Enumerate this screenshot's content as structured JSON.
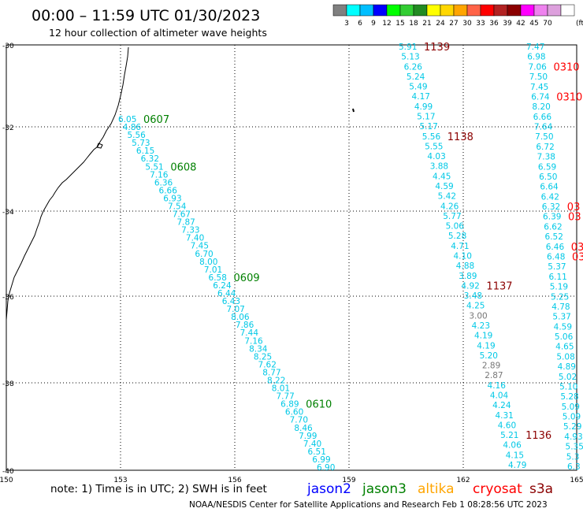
{
  "title": "00:00 – 11:59 UTC 01/30/2023",
  "subtitle": "12 hour collection of altimeter wave heights",
  "legend": {
    "unit": "(ft)",
    "colors": [
      "#808080",
      "#00ffff",
      "#00bfff",
      "#0000ff",
      "#00ff00",
      "#32cd32",
      "#228b22",
      "#ffff00",
      "#ffd700",
      "#ffa500",
      "#ff6347",
      "#ff0000",
      "#b22222",
      "#8b0000",
      "#ff00ff",
      "#ee82ee",
      "#dda0dd",
      "#ffffff"
    ],
    "labels": [
      "3",
      "6",
      "9",
      "12",
      "15",
      "18",
      "21",
      "24",
      "27",
      "30",
      "33",
      "36",
      "39",
      "42",
      "45",
      "70"
    ]
  },
  "axes": {
    "lat_labels": [
      "-30",
      "-32",
      "-34",
      "-36",
      "-38",
      "-40"
    ],
    "lon_labels": [
      "150",
      "153",
      "156",
      "159",
      "162",
      "165"
    ]
  },
  "note": "note:  1) Time is in UTC; 2) SWH is in feet",
  "satellites": [
    {
      "name": "jason2",
      "color": "#0000ff"
    },
    {
      "name": "jason3",
      "color": "#008000"
    },
    {
      "name": "altika",
      "color": "#ffa500"
    },
    {
      "name": "cryosat",
      "color": "#ff0000"
    },
    {
      "name": "s3a",
      "color": "#8b0000"
    }
  ],
  "footer": "NOAA/NESDIS Center for Satellite Applications and Research   Feb  1 08:28:56 UTC 2023",
  "tracks": [
    {
      "id": "jason3-pass",
      "color": "#00bfff",
      "labelColor": "#008000",
      "values": [
        "6.05",
        "4.86",
        "5.56",
        "5.73",
        "6.15",
        "6.32",
        "5.51",
        "7.16",
        "6.36",
        "6.66",
        "6.93",
        "7.54",
        "7.67",
        "7.87",
        "7.33",
        "7.40",
        "7.45",
        "6.70",
        "8.00",
        "7.01",
        "6.58",
        "6.24",
        "6.44",
        "6.43",
        "7.07",
        "8.06",
        "7.86",
        "7.44",
        "7.16",
        "8.34",
        "8.25",
        "7.62",
        "8.77",
        "8.22",
        "8.01",
        "7.77",
        "6.89",
        "6.60",
        "7.70",
        "8.46",
        "7.99",
        "7.40",
        "6.51",
        "6.99",
        "6.90"
      ],
      "times": [
        {
          "idx": 0,
          "text": "0607"
        },
        {
          "idx": 6,
          "text": "0608"
        },
        {
          "idx": 20,
          "text": "0609"
        },
        {
          "idx": 36,
          "text": "0610"
        }
      ]
    },
    {
      "id": "s3a-pass",
      "color": "#00bfff",
      "labelColor": "#8b0000",
      "values": [
        "5.91",
        "5.13",
        "6.26",
        "5.24",
        "5.49",
        "4.17",
        "4.99",
        "5.17",
        "5.17",
        "5.56",
        "5.55",
        "4.03",
        "3.88",
        "4.45",
        "4.59",
        "5.42",
        "4.26",
        "5.77",
        "5.06",
        "5.28",
        "4.71",
        "4.10",
        "4.88",
        "3.89",
        "4.92",
        "3.48",
        "4.25",
        "3.00",
        "4.23",
        "4.19",
        "4.19",
        "5.20",
        "2.89",
        "2.87",
        "4.16",
        "4.04",
        "4.24",
        "4.31",
        "4.60",
        "5.21",
        "4.06",
        "4.15",
        "4.79"
      ],
      "grey": [
        27,
        32,
        33
      ],
      "times": [
        {
          "idx": 0,
          "text": "1139"
        },
        {
          "idx": 9,
          "text": "1138"
        },
        {
          "idx": 24,
          "text": "1137"
        },
        {
          "idx": 39,
          "text": "1136"
        }
      ]
    },
    {
      "id": "east-pass",
      "color": "#00bfff",
      "labelColor": "#ff0000",
      "values": [
        "7.47",
        "6.98",
        "7.06",
        "7.50",
        "7.45",
        "6.74",
        "8.20",
        "6.66",
        "7.64",
        "7.50",
        "6.72",
        "7.38",
        "6.59",
        "6.50",
        "6.64",
        "6.42",
        "6.32",
        "6.39",
        "6.62",
        "6.52",
        "6.46",
        "6.48",
        "5.37",
        "6.11",
        "5.19",
        "5.25",
        "4.78",
        "5.37",
        "4.59",
        "5.06",
        "4.65",
        "5.08",
        "4.89",
        "5.02",
        "5.10",
        "5.28",
        "5.09",
        "5.09",
        "5.29",
        "4.93",
        "5.35",
        "5.3",
        "6.3"
      ],
      "times": [
        {
          "idx": 2,
          "text": "0310"
        },
        {
          "idx": 5,
          "text": "0310"
        },
        {
          "idx": 16,
          "text": "03"
        },
        {
          "idx": 17,
          "text": "03"
        },
        {
          "idx": 20,
          "text": "03"
        },
        {
          "idx": 21,
          "text": "03"
        }
      ]
    }
  ]
}
